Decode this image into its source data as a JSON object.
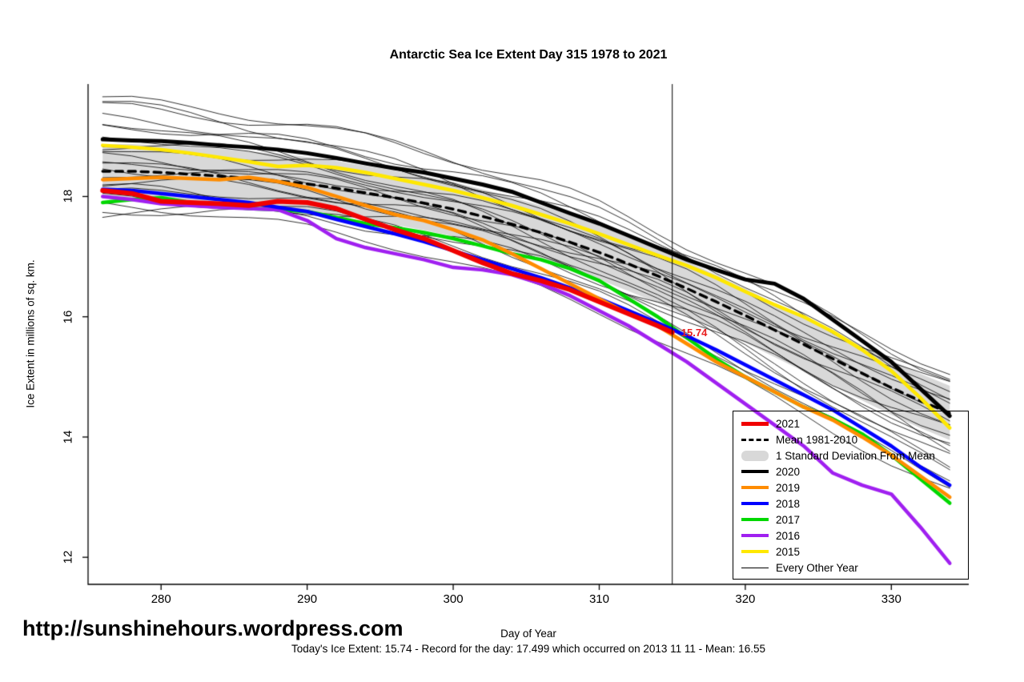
{
  "header": {
    "title": "Antarctic Sea Ice Extent Day 315 1978 to 2021"
  },
  "footer": {
    "site_url": "http://sunshinehours.wordpress.com",
    "status_line": "Today's Ice Extent: 15.74  - Record for the day: 17.499 which occurred on 2013 11 11  - Mean: 16.55"
  },
  "chart_data": {
    "type": "line",
    "title": "Antarctic Sea Ice Extent Day 315 1978 to 2021",
    "xlabel": "Day of Year",
    "ylabel": "Ice Extent in millions of sq. km.",
    "xlim": [
      275,
      335.3
    ],
    "ylim": [
      11.55,
      19.87
    ],
    "xticks": [
      280,
      290,
      300,
      310,
      320,
      330
    ],
    "yticks": [
      12,
      14,
      16,
      18
    ],
    "grid": false,
    "vline_x": 315,
    "annotation": {
      "text": "15.74",
      "x": 315.5,
      "y": 15.74,
      "color": "#e82020"
    },
    "x": [
      276,
      278,
      280,
      282,
      284,
      286,
      288,
      290,
      292,
      294,
      296,
      298,
      300,
      302,
      304,
      306,
      308,
      310,
      312,
      314,
      316,
      318,
      320,
      322,
      324,
      326,
      328,
      330,
      332,
      334
    ],
    "mean": {
      "label": "Mean 1981-2010",
      "color": "#000000",
      "dash": true,
      "values": [
        18.42,
        18.42,
        18.4,
        18.37,
        18.34,
        18.3,
        18.26,
        18.21,
        18.14,
        18.06,
        17.98,
        17.89,
        17.79,
        17.67,
        17.54,
        17.4,
        17.24,
        17.07,
        16.88,
        16.68,
        16.47,
        16.25,
        16.02,
        15.78,
        15.54,
        15.3,
        15.06,
        14.82,
        14.6,
        14.4
      ]
    },
    "band": {
      "label": "1 Standard Deviation From Mean",
      "color": "#d8d8d8",
      "upper": [
        18.87,
        18.87,
        18.85,
        18.82,
        18.79,
        18.75,
        18.71,
        18.66,
        18.59,
        18.51,
        18.43,
        18.34,
        18.24,
        18.12,
        17.99,
        17.85,
        17.69,
        17.52,
        17.33,
        17.13,
        16.92,
        16.7,
        16.47,
        16.23,
        15.99,
        15.75,
        15.51,
        15.27,
        15.05,
        14.85
      ],
      "lower": [
        17.97,
        17.97,
        17.95,
        17.92,
        17.89,
        17.85,
        17.81,
        17.76,
        17.69,
        17.61,
        17.53,
        17.44,
        17.34,
        17.22,
        17.09,
        16.95,
        16.79,
        16.62,
        16.43,
        16.23,
        16.02,
        15.8,
        15.57,
        15.33,
        15.09,
        14.85,
        14.61,
        14.37,
        14.15,
        13.95
      ]
    },
    "series": [
      {
        "name": "2015",
        "color": "#ffe800",
        "width": 4.5,
        "values": [
          18.85,
          18.82,
          18.78,
          18.72,
          18.65,
          18.58,
          18.5,
          18.52,
          18.48,
          18.4,
          18.3,
          18.2,
          18.1,
          17.98,
          17.85,
          17.7,
          17.55,
          17.38,
          17.2,
          17.02,
          16.85,
          16.65,
          16.42,
          16.2,
          16.0,
          15.75,
          15.45,
          15.1,
          14.65,
          14.15
        ]
      },
      {
        "name": "2017",
        "color": "#00d800",
        "width": 4.5,
        "values": [
          17.9,
          17.95,
          17.98,
          17.9,
          17.85,
          17.8,
          17.78,
          17.75,
          17.65,
          17.55,
          17.48,
          17.4,
          17.3,
          17.18,
          17.05,
          16.95,
          16.8,
          16.6,
          16.3,
          16.0,
          15.65,
          15.3,
          15.0,
          14.75,
          14.5,
          14.3,
          14.05,
          13.7,
          13.3,
          12.9
        ]
      },
      {
        "name": "2016",
        "color": "#a020f0",
        "width": 4.5,
        "values": [
          18.0,
          17.95,
          17.88,
          17.85,
          17.82,
          17.8,
          17.78,
          17.6,
          17.3,
          17.15,
          17.05,
          16.95,
          16.82,
          16.78,
          16.7,
          16.55,
          16.35,
          16.1,
          15.85,
          15.55,
          15.25,
          14.9,
          14.55,
          14.2,
          13.85,
          13.4,
          13.2,
          13.05,
          12.5,
          11.9
        ]
      },
      {
        "name": "2018",
        "color": "#0000ff",
        "width": 4.5,
        "values": [
          18.12,
          18.1,
          18.05,
          18.0,
          17.95,
          17.9,
          17.82,
          17.75,
          17.62,
          17.5,
          17.38,
          17.25,
          17.1,
          16.95,
          16.8,
          16.65,
          16.48,
          16.3,
          16.1,
          15.9,
          15.68,
          15.45,
          15.2,
          14.95,
          14.7,
          14.45,
          14.15,
          13.85,
          13.5,
          13.2
        ]
      },
      {
        "name": "2019",
        "color": "#ff8c00",
        "width": 4.5,
        "values": [
          18.28,
          18.3,
          18.32,
          18.3,
          18.28,
          18.32,
          18.25,
          18.15,
          18.0,
          17.85,
          17.7,
          17.6,
          17.45,
          17.28,
          17.05,
          16.8,
          16.55,
          16.3,
          16.05,
          15.85,
          15.55,
          15.25,
          15.0,
          14.75,
          14.5,
          14.28,
          14.0,
          13.7,
          13.35,
          13.0
        ]
      },
      {
        "name": "2020",
        "color": "#000000",
        "width": 5,
        "values": [
          18.95,
          18.93,
          18.92,
          18.89,
          18.85,
          18.82,
          18.78,
          18.72,
          18.64,
          18.55,
          18.47,
          18.4,
          18.3,
          18.2,
          18.08,
          17.9,
          17.72,
          17.55,
          17.35,
          17.15,
          16.95,
          16.78,
          16.62,
          16.55,
          16.3,
          15.95,
          15.6,
          15.25,
          14.8,
          14.35
        ]
      },
      {
        "name": "2021",
        "color": "#f00000",
        "width": 6,
        "x": [
          276,
          278,
          280,
          282,
          284,
          286,
          288,
          290,
          292,
          294,
          296,
          298,
          300,
          302,
          304,
          306,
          308,
          310,
          312,
          314,
          315
        ],
        "values": [
          18.1,
          18.05,
          17.92,
          17.9,
          17.88,
          17.85,
          17.92,
          17.9,
          17.8,
          17.62,
          17.45,
          17.3,
          17.1,
          16.9,
          16.72,
          16.6,
          16.45,
          16.25,
          16.05,
          15.85,
          15.74
        ]
      }
    ],
    "background_years": {
      "label": "Every Other Year",
      "color": "#000000",
      "width": 0.8,
      "line_params": [
        [
          1.2,
          0.3,
          0.08,
          0.5
        ],
        [
          1.05,
          0.6,
          0.1,
          1.2
        ],
        [
          0.9,
          -0.2,
          0.07,
          2.0
        ],
        [
          0.75,
          0.45,
          0.09,
          2.9
        ],
        [
          0.6,
          -0.6,
          0.06,
          3.7
        ],
        [
          0.5,
          0.1,
          0.1,
          4.4
        ],
        [
          0.4,
          -0.9,
          0.08,
          5.1
        ],
        [
          0.3,
          0.7,
          0.07,
          0.9
        ],
        [
          0.22,
          -0.35,
          0.09,
          1.7
        ],
        [
          0.12,
          0.2,
          0.06,
          2.5
        ],
        [
          0.05,
          -0.75,
          0.08,
          3.3
        ],
        [
          -0.05,
          0.5,
          0.07,
          4.1
        ],
        [
          -0.15,
          -0.15,
          0.1,
          4.9
        ],
        [
          -0.25,
          -1.05,
          0.08,
          0.3
        ],
        [
          -0.35,
          0.05,
          0.06,
          1.1
        ],
        [
          -0.45,
          -0.5,
          0.09,
          1.9
        ],
        [
          -0.55,
          -1.3,
          0.07,
          2.7
        ],
        [
          -0.65,
          -0.3,
          0.1,
          3.5
        ],
        [
          0.85,
          -1.0,
          0.08,
          4.3
        ],
        [
          -0.7,
          0.35,
          0.07,
          5.0
        ],
        [
          1.15,
          -0.55,
          0.09,
          0.1
        ],
        [
          0.18,
          -1.2,
          0.07,
          5.6
        ]
      ]
    },
    "legend": {
      "position": "bottom-right",
      "items": [
        {
          "label": "2021",
          "swatch": "line",
          "color": "#f00000",
          "width": 5
        },
        {
          "label": "Mean 1981-2010",
          "swatch": "dashed-line",
          "color": "#000000",
          "width": 3
        },
        {
          "label": "1 Standard Deviation From Mean",
          "swatch": "band",
          "color": "#d8d8d8"
        },
        {
          "label": "2020",
          "swatch": "line",
          "color": "#000000",
          "width": 4
        },
        {
          "label": "2019",
          "swatch": "line",
          "color": "#ff8c00",
          "width": 4
        },
        {
          "label": "2018",
          "swatch": "line",
          "color": "#0000ff",
          "width": 4
        },
        {
          "label": "2017",
          "swatch": "line",
          "color": "#00d800",
          "width": 4
        },
        {
          "label": "2016",
          "swatch": "line",
          "color": "#a020f0",
          "width": 4
        },
        {
          "label": "2015",
          "swatch": "line",
          "color": "#ffe800",
          "width": 4
        },
        {
          "label": "Every Other Year",
          "swatch": "line",
          "color": "#000000",
          "width": 1
        }
      ]
    }
  }
}
